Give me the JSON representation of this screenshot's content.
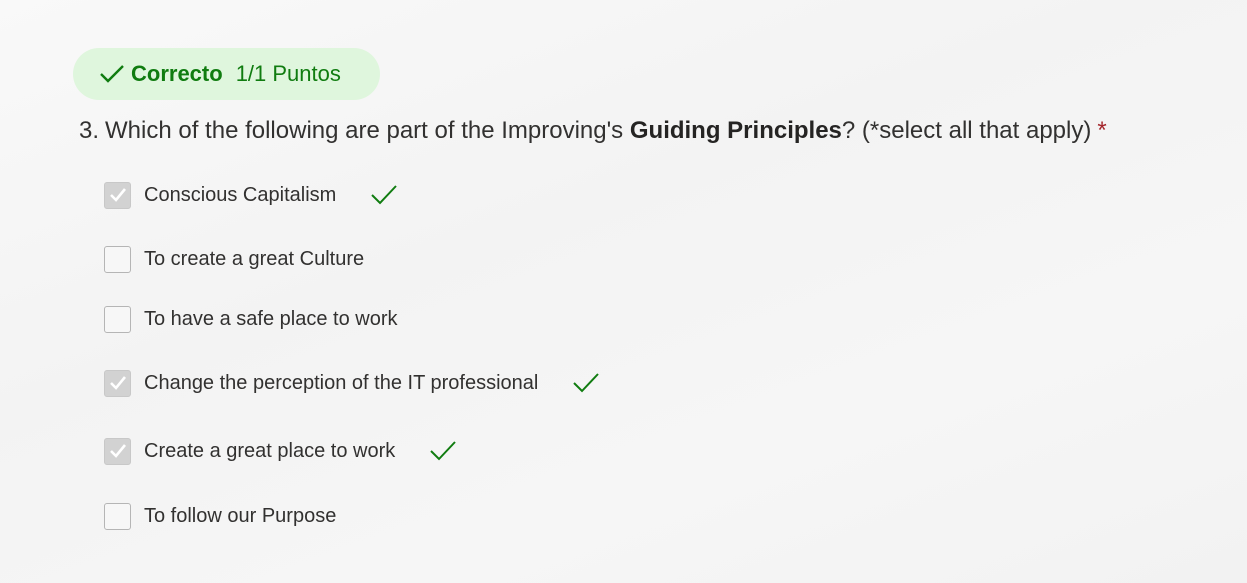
{
  "result": {
    "status": "Correcto",
    "score": "1/1 Puntos",
    "icon": "check-icon",
    "color": "#107c10"
  },
  "question": {
    "number": "3.",
    "text_before": "Which of the following are part of the Improving's ",
    "text_bold": "Guiding Principles",
    "text_after": "?  (*select all that apply)",
    "required_marker": "*"
  },
  "options": [
    {
      "label": "Conscious Capitalism",
      "checked": true,
      "correct_mark": true
    },
    {
      "label": "To create a great Culture",
      "checked": false,
      "correct_mark": false
    },
    {
      "label": "To have a safe place to work",
      "checked": false,
      "correct_mark": false
    },
    {
      "label": "Change the perception of the IT professional",
      "checked": true,
      "correct_mark": true
    },
    {
      "label": "Create a great place to work",
      "checked": true,
      "correct_mark": true
    },
    {
      "label": "To follow our Purpose",
      "checked": false,
      "correct_mark": false
    }
  ]
}
